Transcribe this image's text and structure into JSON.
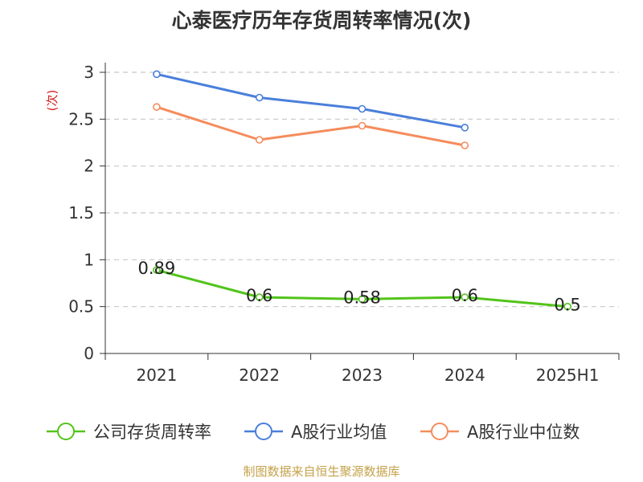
{
  "chart_data": {
    "type": "line",
    "title": "心泰医疗历年存货周转率情况(次)",
    "ylabel": "(次)",
    "categories": [
      "2021",
      "2022",
      "2023",
      "2024",
      "2025H1"
    ],
    "ylim": [
      0,
      3
    ],
    "yticks": [
      "0",
      "0.5",
      "1",
      "1.5",
      "2",
      "2.5",
      "3"
    ],
    "grid": true,
    "legend_position": "bottom",
    "series": [
      {
        "name": "公司存货周转率",
        "color": "#52c41a",
        "values": [
          0.89,
          0.6,
          0.58,
          0.6,
          0.5
        ],
        "labels": [
          "0.89",
          "0.6",
          "0.58",
          "0.6",
          "0.5"
        ]
      },
      {
        "name": "A股行业均值",
        "color": "#4a7fdb",
        "values": [
          2.98,
          2.73,
          2.61,
          2.41,
          null
        ]
      },
      {
        "name": "A股行业中位数",
        "color": "#f58c5c",
        "values": [
          2.63,
          2.28,
          2.43,
          2.22,
          null
        ]
      }
    ]
  },
  "source": "制图数据来自恒生聚源数据库"
}
